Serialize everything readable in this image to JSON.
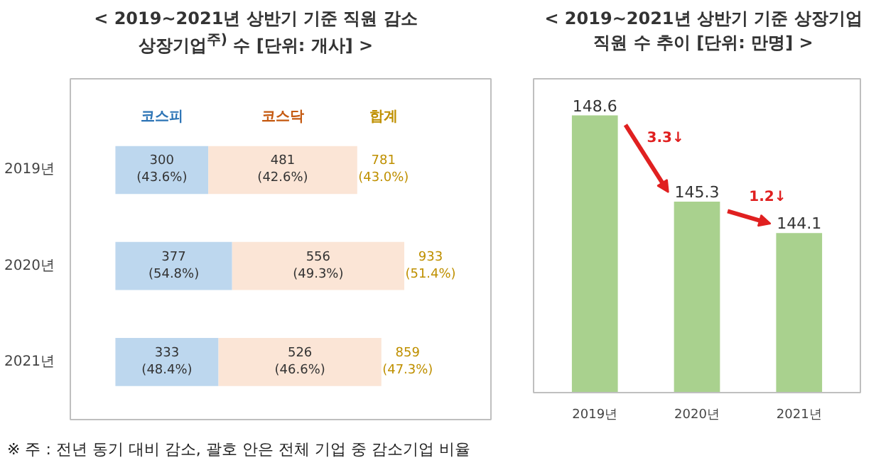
{
  "chart_data": [
    {
      "type": "bar",
      "orientation": "horizontal",
      "stacked": true,
      "title": "< 2019~2021년 상반기 기준 직원 감소\n상장기업$^{주)}$ 수 [단위: 개사] >",
      "categories": [
        "2019년",
        "2020년",
        "2021년"
      ],
      "series": [
        {
          "name": "코스피",
          "color": "#bdd7ee",
          "values": [
            300,
            377,
            333
          ],
          "value_labels": [
            "300\n(43.6%)",
            "377\n(54.8%)",
            "333\n(48.4%)"
          ]
        },
        {
          "name": "코스닥",
          "color": "#fbe5d6",
          "values": [
            481,
            556,
            526
          ],
          "value_labels": [
            "481\n(42.6%)",
            "556\n(49.3%)",
            "526\n(46.6%)"
          ]
        }
      ],
      "totals": [
        "781\n(43.0%)",
        "933\n(51.4%)",
        "859\n(47.3%)"
      ],
      "legend_title": "합계",
      "tick_labels": "y",
      "annotations": [
        "※ 주 : 전년 동기 대비 감소, 괄호 안은 전체 기업 중 감소기업 비율"
      ]
    },
    {
      "type": "bar",
      "title": "< 2019~2021년 상반기 기준 상장기업\n직원 수 추이 [단위: 만명] >",
      "categories": [
        "2019년",
        "2020년",
        "2021년"
      ],
      "values": [
        148.6,
        145.3,
        144.1
      ],
      "color": "#a9d18e",
      "data_labels": true,
      "ylim": [
        138,
        150
      ],
      "tick_labels": "x",
      "annotations": [
        "3.3↓",
        "1.2↓"
      ]
    }
  ]
}
